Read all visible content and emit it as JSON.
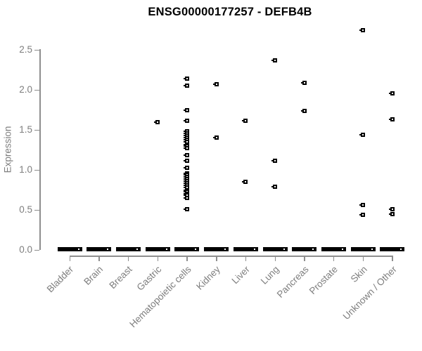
{
  "figure": {
    "background_color": "#ffffff",
    "title_color": "#000000",
    "axis_color": "#8e8e8e",
    "label_color": "#7e7e7e",
    "point_color": "#000000"
  },
  "chart_data": {
    "type": "scatter",
    "title": "ENSG00000177257 - DEFB4B",
    "xlabel": "",
    "ylabel": "Expression",
    "ylim": [
      0.0,
      2.8
    ],
    "y_tick_labels": [
      "0.0",
      "0.5",
      "1.0",
      "1.5",
      "2.0",
      "2.5"
    ],
    "y_tick_values": [
      0.0,
      0.5,
      1.0,
      1.5,
      2.0,
      2.5
    ],
    "grid": false,
    "legend": false,
    "marker": "open-square",
    "categories": [
      "Bladder",
      "Brain",
      "Breast",
      "Gastric",
      "Hematopoietic cells",
      "Kidney",
      "Liver",
      "Lung",
      "Pancreas",
      "Prostate",
      "Skin",
      "Unknown / Other"
    ],
    "points_by_category": {
      "Bladder": [],
      "Brain": [],
      "Breast": [],
      "Gastric": [
        1.6
      ],
      "Hematopoietic cells": [
        2.14,
        2.05,
        1.75,
        1.61,
        1.48,
        1.46,
        1.43,
        1.4,
        1.38,
        1.35,
        1.32,
        1.3,
        1.27,
        1.18,
        1.11,
        1.03,
        0.96,
        0.94,
        0.91,
        0.89,
        0.86,
        0.83,
        0.81,
        0.78,
        0.75,
        0.73,
        0.7,
        0.68,
        0.65,
        0.51
      ],
      "Kidney": [
        2.07,
        1.4
      ],
      "Liver": [
        1.61,
        0.85
      ],
      "Lung": [
        2.37,
        1.11,
        0.79
      ],
      "Pancreas": [
        2.09,
        1.74
      ],
      "Prostate": [],
      "Skin": [
        2.75,
        1.44,
        0.56,
        0.44
      ],
      "Unknown / Other": [
        1.96,
        1.63,
        0.51,
        0.45
      ]
    },
    "zero_value_bar": {
      "value": 0.0,
      "categories": [
        "Bladder",
        "Brain",
        "Breast",
        "Gastric",
        "Hematopoietic cells",
        "Kidney",
        "Liver",
        "Lung",
        "Pancreas",
        "Prostate",
        "Skin",
        "Unknown / Other"
      ]
    }
  }
}
